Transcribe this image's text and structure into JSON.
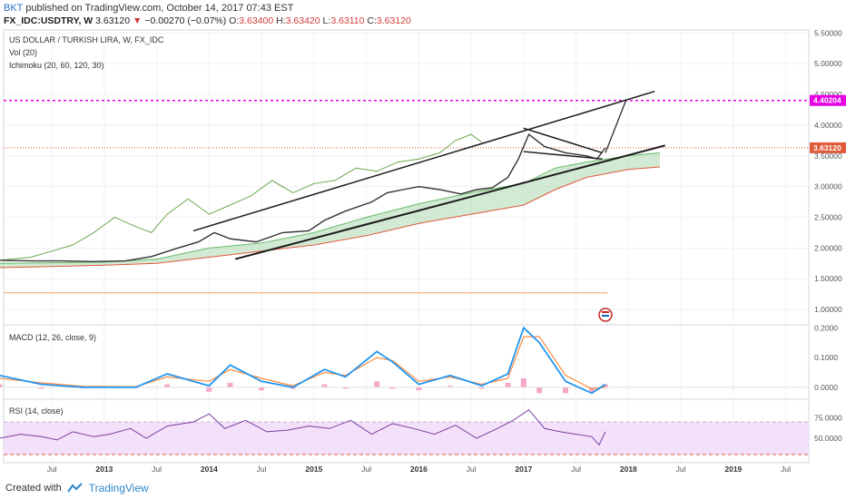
{
  "header": {
    "user": "BKT",
    "published_text": "published on TradingView.com, October 14, 2017 07:43 EST",
    "symbol": "FX_IDC:USDTRY, W",
    "last": "3.63120",
    "change": "−0.00270 (−0.07%)",
    "o_label": "O:",
    "o": "3.63400",
    "h_label": "H:",
    "h": "3.63420",
    "l_label": "L:",
    "l": "3.63110",
    "c_label": "C:",
    "c": "3.63120"
  },
  "indicators": {
    "main_title": "US DOLLAR / TURKISH LIRA, W, FX_IDC",
    "vol": "Vol (20)",
    "ichimoku": "Ichimoku (20, 60, 120, 30)",
    "macd": "MACD (12, 26, close, 9)",
    "rsi": "RSI (14, close)"
  },
  "footer": {
    "created_with": "Created with",
    "brand": "TradingView"
  },
  "colors": {
    "magenta": "#e600e6",
    "price_red": "#e05a3a",
    "cloud": "#a5d6a7",
    "macd_blue": "#2196f3",
    "signal_orange": "#ff8a3d",
    "hist_pink": "#f7a6c8",
    "rsi_purple": "#7b3fa0",
    "rsi_band": "#f3e0fa",
    "lagging": "#6aa84f"
  },
  "chart_data": {
    "type": "line",
    "title": "US DOLLAR / TURKISH LIRA, W, FX_IDC",
    "x_labels": [
      "Jul",
      "2013",
      "Jul",
      "2014",
      "Jul",
      "2015",
      "Jul",
      "2016",
      "Jul",
      "2017",
      "Jul",
      "2018",
      "Jul",
      "2019",
      "Jul"
    ],
    "x_label_years": [
      2012.5,
      2013,
      2013.5,
      2014,
      2014.5,
      2015,
      2015.5,
      2016,
      2016.5,
      2017,
      2017.5,
      2018,
      2018.5,
      2019,
      2019.5
    ],
    "price_axis": {
      "ticks": [
        "5.50000",
        "5.00000",
        "4.50000",
        "4.00000",
        "3.50000",
        "3.00000",
        "2.50000",
        "2.00000",
        "1.50000",
        "1.00000"
      ],
      "range": [
        0.75,
        5.55
      ]
    },
    "price_labels": {
      "target": "4.40204",
      "last": "3.63120"
    },
    "target_level": 4.40204,
    "last_price": 3.6312,
    "orange_level": 1.27,
    "price_series": {
      "x": [
        2012.0,
        2012.3,
        2012.6,
        2012.9,
        2013.2,
        2013.45,
        2013.7,
        2013.9,
        2014.05,
        2014.2,
        2014.45,
        2014.7,
        2014.95,
        2015.1,
        2015.3,
        2015.55,
        2015.7,
        2015.85,
        2016.0,
        2016.2,
        2016.4,
        2016.55,
        2016.7,
        2016.85,
        2016.95,
        2017.05,
        2017.2,
        2017.4,
        2017.6,
        2017.7,
        2017.78
      ],
      "y": [
        1.8,
        1.79,
        1.79,
        1.78,
        1.79,
        1.86,
        2.0,
        2.1,
        2.25,
        2.15,
        2.1,
        2.25,
        2.28,
        2.45,
        2.6,
        2.75,
        2.9,
        2.95,
        3.0,
        2.95,
        2.88,
        2.95,
        2.98,
        3.15,
        3.45,
        3.85,
        3.65,
        3.55,
        3.5,
        3.45,
        3.63
      ]
    },
    "lagging_span": {
      "x": [
        2012.0,
        2012.3,
        2012.5,
        2012.7,
        2012.9,
        2013.1,
        2013.3,
        2013.45,
        2013.6,
        2013.8,
        2014.0,
        2014.2,
        2014.4,
        2014.6,
        2014.8,
        2015.0,
        2015.2,
        2015.4,
        2015.6,
        2015.8,
        2016.0,
        2016.2,
        2016.35,
        2016.5,
        2016.6
      ],
      "y": [
        1.8,
        1.85,
        1.95,
        2.05,
        2.25,
        2.5,
        2.35,
        2.25,
        2.55,
        2.8,
        2.55,
        2.7,
        2.85,
        3.1,
        2.9,
        3.05,
        3.1,
        3.3,
        3.25,
        3.4,
        3.45,
        3.55,
        3.75,
        3.85,
        3.72
      ]
    },
    "cloud": {
      "x": [
        2012.0,
        2012.5,
        2013.0,
        2013.5,
        2014.0,
        2014.5,
        2015.0,
        2015.5,
        2016.0,
        2016.5,
        2017.0,
        2017.3,
        2017.6,
        2018.0,
        2018.3
      ],
      "upper": [
        1.75,
        1.76,
        1.77,
        1.82,
        2.0,
        2.08,
        2.25,
        2.5,
        2.72,
        2.9,
        3.05,
        3.3,
        3.4,
        3.5,
        3.55
      ],
      "lower": [
        1.68,
        1.7,
        1.72,
        1.75,
        1.85,
        1.95,
        2.05,
        2.2,
        2.4,
        2.55,
        2.7,
        2.95,
        3.15,
        3.28,
        3.32
      ]
    },
    "channel_upper": {
      "x": [
        2013.85,
        2018.25
      ],
      "y": [
        2.28,
        4.55
      ]
    },
    "channel_lower": {
      "x": [
        2014.25,
        2018.35
      ],
      "y": [
        1.82,
        3.67
      ]
    },
    "triangle_top": {
      "x": [
        2017.0,
        2017.75
      ],
      "y": [
        3.95,
        3.55
      ]
    },
    "triangle_bottom": {
      "x": [
        2017.0,
        2017.75
      ],
      "y": [
        3.57,
        3.45
      ]
    },
    "projection": {
      "x": [
        2017.78,
        2017.98
      ],
      "y": [
        3.55,
        4.42
      ]
    },
    "macd_axis": {
      "ticks": [
        "0.2000",
        "0.1000",
        "0.0000"
      ],
      "range": [
        -0.04,
        0.21
      ]
    },
    "macd": {
      "x": [
        2012.0,
        2012.4,
        2012.8,
        2013.3,
        2013.6,
        2014.0,
        2014.2,
        2014.5,
        2014.8,
        2015.1,
        2015.3,
        2015.6,
        2015.75,
        2016.0,
        2016.3,
        2016.6,
        2016.85,
        2017.0,
        2017.15,
        2017.4,
        2017.65,
        2017.78
      ],
      "macd": [
        0.04,
        0.01,
        0.0,
        0.0,
        0.045,
        0.005,
        0.075,
        0.02,
        0.0,
        0.06,
        0.035,
        0.12,
        0.085,
        0.01,
        0.04,
        0.005,
        0.045,
        0.2,
        0.15,
        0.02,
        -0.02,
        0.01
      ],
      "signal": [
        0.03,
        0.015,
        0.003,
        0.002,
        0.035,
        0.02,
        0.06,
        0.03,
        0.005,
        0.05,
        0.04,
        0.1,
        0.09,
        0.02,
        0.035,
        0.01,
        0.03,
        0.17,
        0.17,
        0.04,
        -0.005,
        0.0
      ]
    },
    "rsi_axis": {
      "ticks": [
        "75.0000",
        "50.0000"
      ],
      "range": [
        20,
        98
      ],
      "band": [
        30,
        70
      ]
    },
    "rsi": {
      "x": [
        2012.0,
        2012.2,
        2012.4,
        2012.55,
        2012.7,
        2012.9,
        2013.05,
        2013.25,
        2013.4,
        2013.6,
        2013.85,
        2014.0,
        2014.15,
        2014.35,
        2014.55,
        2014.75,
        2014.95,
        2015.15,
        2015.35,
        2015.55,
        2015.75,
        2015.95,
        2016.15,
        2016.35,
        2016.55,
        2016.75,
        2016.9,
        2017.05,
        2017.2,
        2017.35,
        2017.5,
        2017.65,
        2017.72,
        2017.78
      ],
      "y": [
        50,
        55,
        52,
        48,
        58,
        52,
        55,
        62,
        50,
        65,
        70,
        80,
        62,
        72,
        58,
        60,
        65,
        62,
        72,
        55,
        68,
        62,
        55,
        66,
        50,
        62,
        72,
        85,
        62,
        58,
        55,
        52,
        42,
        58
      ]
    }
  }
}
